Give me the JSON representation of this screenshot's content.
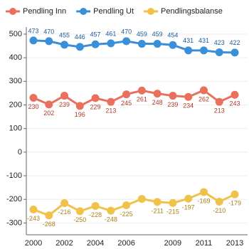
{
  "chart_data": {
    "type": "line",
    "categories": [
      "2000",
      null,
      "2002",
      null,
      "2004",
      null,
      "2006",
      null,
      null,
      "2009",
      null,
      "2011",
      null,
      "2013"
    ],
    "series": [
      {
        "name": "Pendling Inn",
        "color": "#e8705c",
        "label_color": "#b0392b",
        "label_pos": "below",
        "values": [
          230,
          202,
          239,
          196,
          229,
          213,
          245,
          261,
          248,
          239,
          234,
          262,
          213,
          243
        ]
      },
      {
        "name": "Pendling Ut",
        "color": "#3b8fd8",
        "label_color": "#1c5b9c",
        "label_pos": "above",
        "values": [
          473,
          470,
          455,
          446,
          457,
          461,
          470,
          459,
          459,
          454,
          431,
          431,
          423,
          422
        ]
      },
      {
        "name": "Pendlingsbalanse",
        "color": "#f1c24a",
        "label_color": "#a8821a",
        "label_pos": "below",
        "values": [
          -243,
          -268,
          -216,
          -250,
          -228,
          -248,
          -225,
          -198,
          -211,
          -215,
          -197,
          -169,
          -210,
          -179
        ],
        "value_labels": [
          "-243",
          "-268",
          "-216",
          "-250",
          "-228",
          "-248",
          "-225",
          null,
          "-211",
          "-215",
          "-197",
          "-169",
          "-210",
          "-179"
        ]
      }
    ],
    "ylim": [
      -350,
      530
    ],
    "yticks": [
      -300,
      -200,
      -100,
      0,
      100,
      200,
      300,
      400,
      500
    ],
    "grid": true,
    "legend": "top"
  }
}
